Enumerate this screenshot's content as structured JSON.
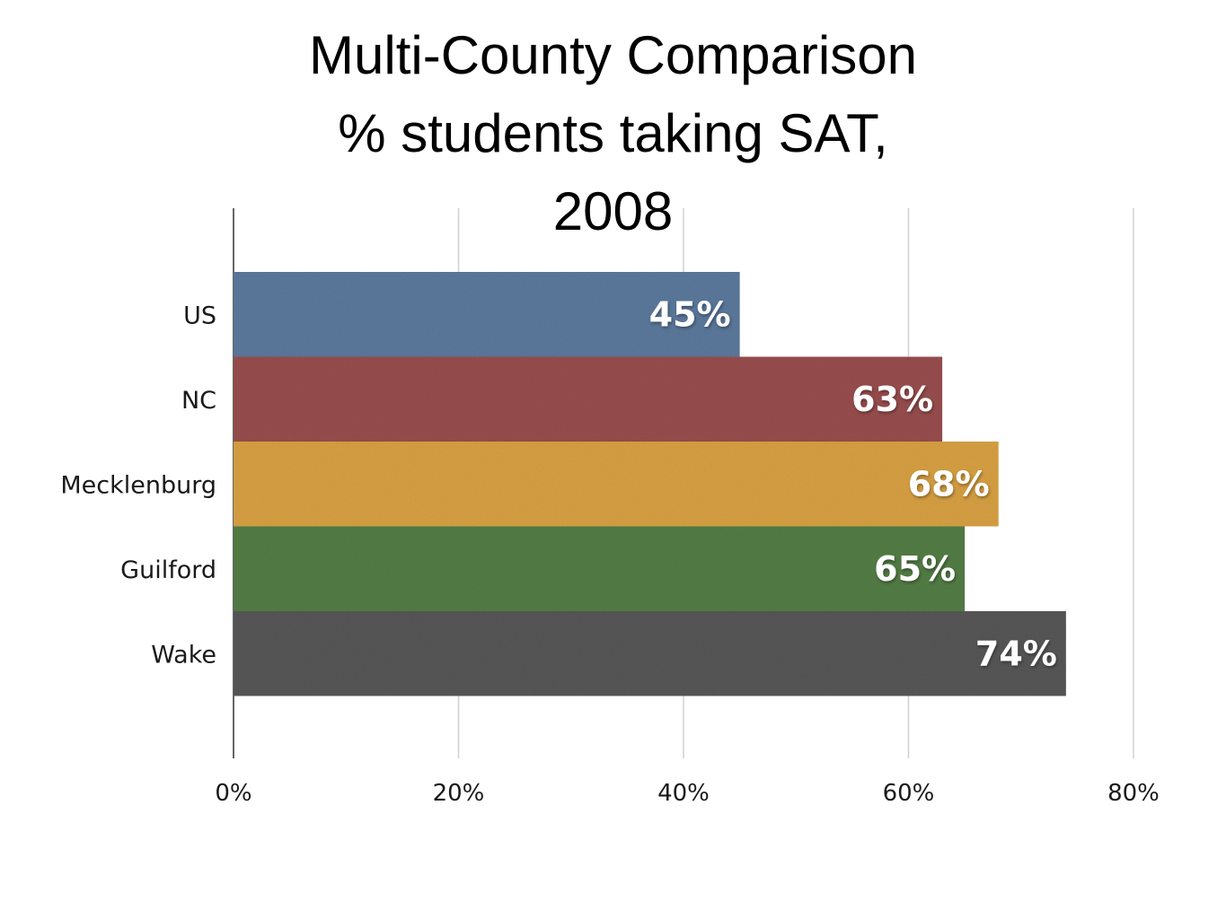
{
  "chart_data": {
    "type": "bar",
    "orientation": "horizontal",
    "title_lines": [
      "Multi-County Comparison",
      "% students taking SAT,",
      "2008"
    ],
    "categories": [
      "US",
      "NC",
      "Mecklenburg",
      "Guilford",
      "Wake"
    ],
    "values": [
      45,
      63,
      68,
      65,
      74
    ],
    "value_labels": [
      "45%",
      "63%",
      "68%",
      "65%",
      "74%"
    ],
    "colors": [
      "#5d7a9e",
      "#9a4f50",
      "#d9a244",
      "#547f47",
      "#585858"
    ],
    "xlim": [
      0,
      80
    ],
    "xticks": [
      0,
      20,
      40,
      60,
      80
    ],
    "xtick_labels": [
      "0%",
      "20%",
      "40%",
      "60%",
      "80%"
    ],
    "grid": true,
    "xlabel": "",
    "ylabel": ""
  }
}
